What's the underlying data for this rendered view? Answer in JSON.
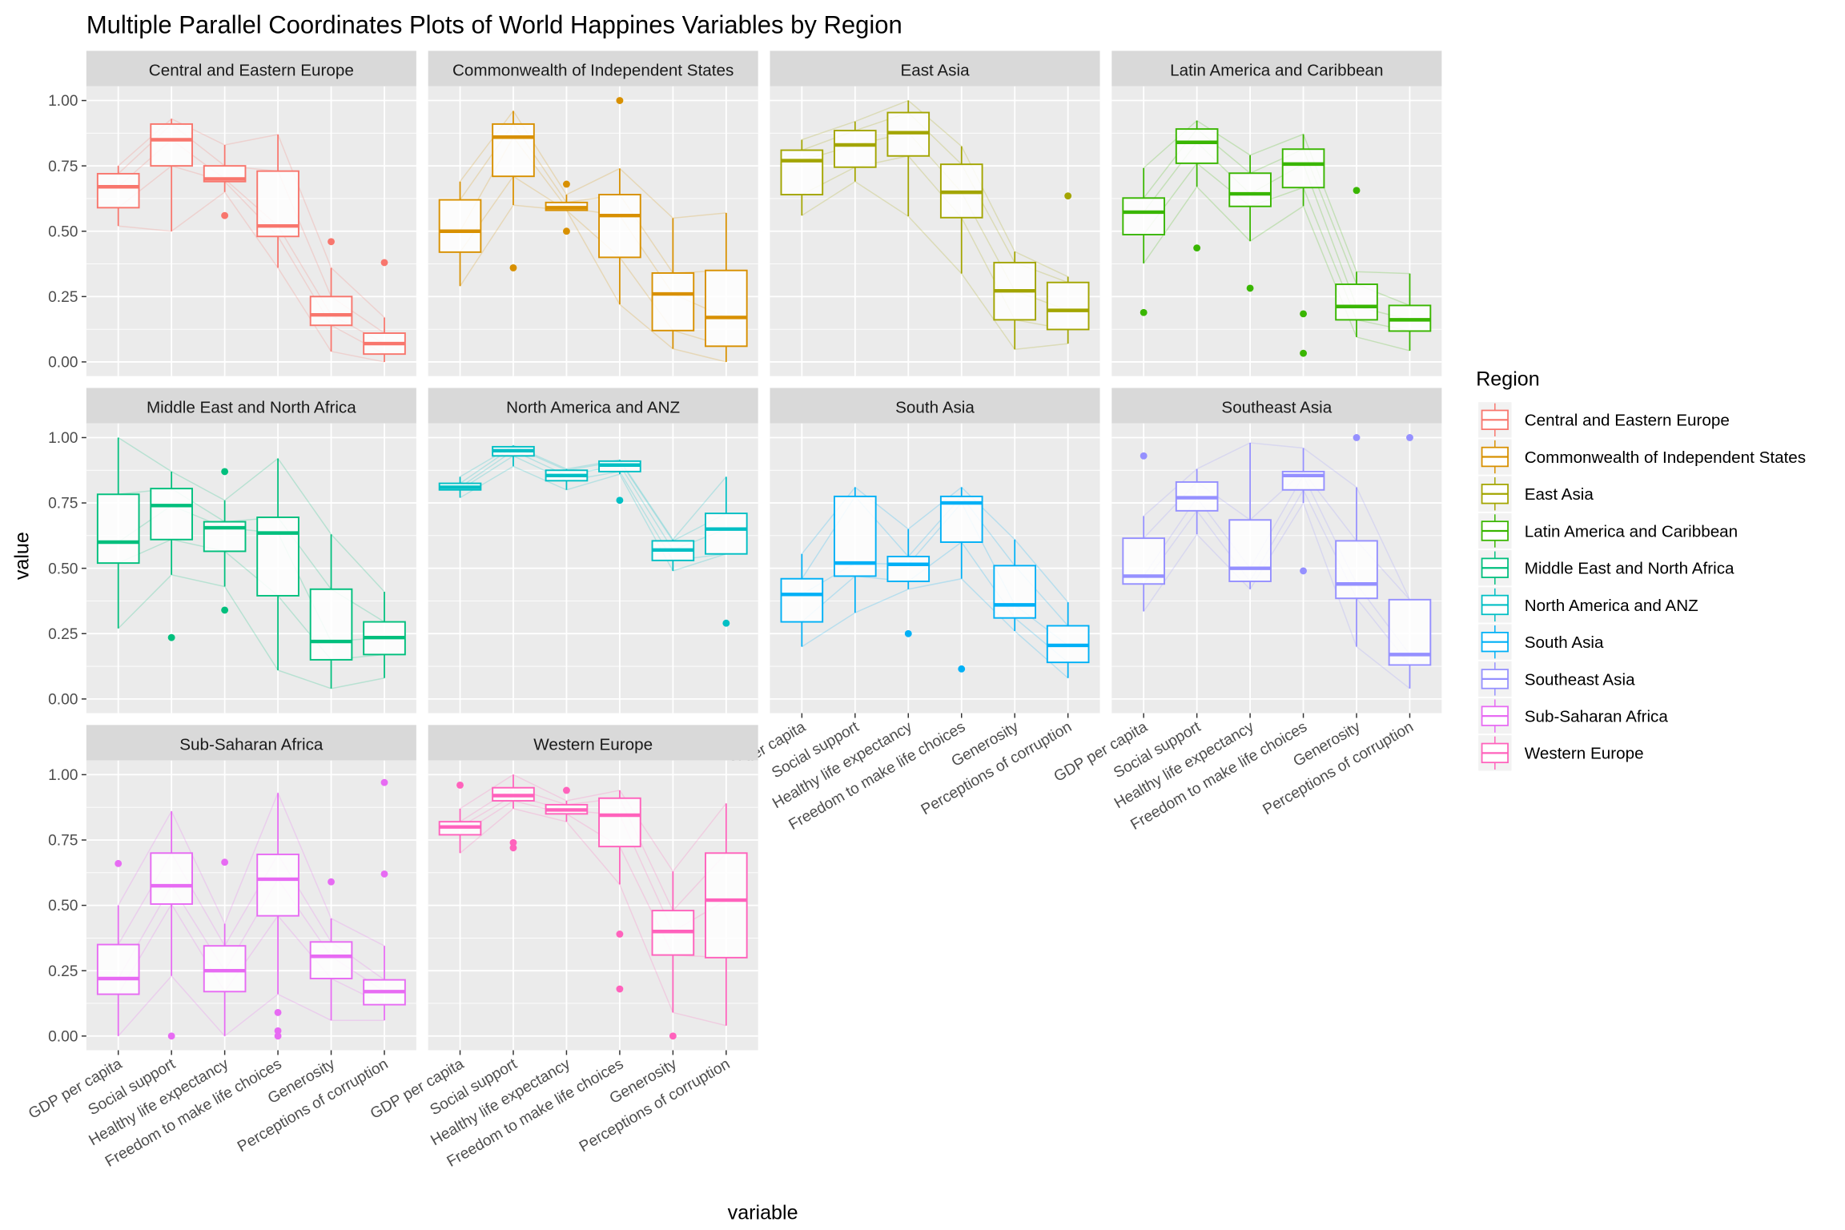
{
  "chart_data": {
    "type": "boxplot + parallel coordinates (faceted)",
    "title": "Multiple Parallel Coordinates Plots of World Happines Variables by Region",
    "xlabel": "variable",
    "ylabel": "value",
    "ylim": [
      0,
      1
    ],
    "yticks": [
      "0.00",
      "0.25",
      "0.50",
      "0.75",
      "1.00"
    ],
    "grid": true,
    "variables": [
      "GDP per capita",
      "Social support",
      "Healthy life expectancy",
      "Freedom to make life choices",
      "Generosity",
      "Perceptions of corruption"
    ],
    "legend": {
      "title": "Region",
      "position": "right"
    },
    "stat_order": [
      "lower_whisker",
      "q1",
      "median",
      "q3",
      "upper_whisker"
    ],
    "panels": [
      {
        "region": "Central and Eastern Europe",
        "color": "#F8766D",
        "stats": [
          [
            0.52,
            0.59,
            0.67,
            0.72,
            0.75
          ],
          [
            0.5,
            0.75,
            0.85,
            0.91,
            0.93
          ],
          [
            0.65,
            0.69,
            0.7,
            0.75,
            0.83
          ],
          [
            0.36,
            0.48,
            0.52,
            0.73,
            0.87
          ],
          [
            0.04,
            0.14,
            0.18,
            0.25,
            0.36
          ],
          [
            0.0,
            0.03,
            0.07,
            0.11,
            0.17
          ]
        ],
        "outliers": [
          [],
          [],
          [
            0.56
          ],
          [],
          [
            0.46
          ],
          [
            0.38
          ]
        ]
      },
      {
        "region": "Commonwealth of Independent States",
        "color": "#D89000",
        "stats": [
          [
            0.29,
            0.42,
            0.5,
            0.62,
            0.69
          ],
          [
            0.6,
            0.71,
            0.86,
            0.91,
            0.96
          ],
          [
            0.58,
            0.58,
            0.59,
            0.61,
            0.64
          ],
          [
            0.22,
            0.4,
            0.56,
            0.64,
            0.74
          ],
          [
            0.05,
            0.12,
            0.26,
            0.34,
            0.55
          ],
          [
            0.0,
            0.06,
            0.17,
            0.35,
            0.57
          ]
        ],
        "outliers": [
          [],
          [
            0.36
          ],
          [
            0.68,
            0.5
          ],
          [
            1.0
          ],
          [],
          []
        ]
      },
      {
        "region": "East Asia",
        "color": "#A3A500",
        "stats": [
          [
            0.56,
            0.64,
            0.77,
            0.81,
            0.85
          ],
          [
            0.69,
            0.745,
            0.83,
            0.885,
            0.92
          ],
          [
            0.557,
            0.788,
            0.877,
            0.954,
            1.0
          ],
          [
            0.338,
            0.552,
            0.649,
            0.756,
            0.825
          ],
          [
            0.048,
            0.161,
            0.272,
            0.38,
            0.422
          ],
          [
            0.07,
            0.124,
            0.197,
            0.304,
            0.326
          ]
        ],
        "outliers": [
          [],
          [],
          [],
          [],
          [],
          [
            0.635
          ]
        ]
      },
      {
        "region": "Latin America and Caribbean",
        "color": "#39B600",
        "stats": [
          [
            0.377,
            0.487,
            0.573,
            0.627,
            0.742
          ],
          [
            0.67,
            0.76,
            0.84,
            0.891,
            0.923
          ],
          [
            0.462,
            0.595,
            0.643,
            0.722,
            0.791
          ],
          [
            0.596,
            0.667,
            0.757,
            0.814,
            0.871
          ],
          [
            0.095,
            0.161,
            0.212,
            0.297,
            0.345
          ],
          [
            0.043,
            0.118,
            0.161,
            0.216,
            0.338
          ]
        ],
        "outliers": [
          [
            0.189
          ],
          [
            0.436
          ],
          [
            0.282
          ],
          [
            0.184,
            0.033
          ],
          [
            0.656
          ],
          []
        ]
      },
      {
        "region": "Middle East and North Africa",
        "color": "#00BF7D",
        "stats": [
          [
            0.27,
            0.52,
            0.6,
            0.783,
            1.0
          ],
          [
            0.475,
            0.61,
            0.74,
            0.805,
            0.87
          ],
          [
            0.43,
            0.565,
            0.655,
            0.678,
            0.76
          ],
          [
            0.11,
            0.395,
            0.635,
            0.695,
            0.92
          ],
          [
            0.04,
            0.15,
            0.22,
            0.42,
            0.63
          ],
          [
            0.08,
            0.17,
            0.235,
            0.295,
            0.41
          ]
        ],
        "outliers": [
          [],
          [
            0.235
          ],
          [
            0.87,
            0.34
          ],
          [],
          [],
          []
        ]
      },
      {
        "region": "North America and ANZ",
        "color": "#00BFC4",
        "stats": [
          [
            0.77,
            0.8,
            0.81,
            0.825,
            0.85
          ],
          [
            0.89,
            0.93,
            0.95,
            0.965,
            0.97
          ],
          [
            0.8,
            0.835,
            0.855,
            0.875,
            0.88
          ],
          [
            0.86,
            0.87,
            0.895,
            0.91,
            0.915
          ],
          [
            0.49,
            0.53,
            0.57,
            0.605,
            0.61
          ],
          [
            0.555,
            0.555,
            0.65,
            0.71,
            0.85
          ]
        ],
        "outliers": [
          [],
          [],
          [],
          [
            0.76
          ],
          [],
          [
            0.29
          ]
        ]
      },
      {
        "region": "South Asia",
        "color": "#00B0F6",
        "stats": [
          [
            0.2,
            0.295,
            0.4,
            0.46,
            0.555
          ],
          [
            0.33,
            0.47,
            0.52,
            0.775,
            0.81
          ],
          [
            0.42,
            0.45,
            0.515,
            0.545,
            0.65
          ],
          [
            0.46,
            0.6,
            0.75,
            0.775,
            0.81
          ],
          [
            0.26,
            0.31,
            0.36,
            0.51,
            0.61
          ],
          [
            0.08,
            0.14,
            0.205,
            0.28,
            0.37
          ]
        ],
        "outliers": [
          [],
          [],
          [
            0.25
          ],
          [
            0.115
          ],
          [],
          []
        ]
      },
      {
        "region": "Southeast Asia",
        "color": "#9590FF",
        "stats": [
          [
            0.335,
            0.44,
            0.47,
            0.615,
            0.7
          ],
          [
            0.63,
            0.72,
            0.77,
            0.83,
            0.88
          ],
          [
            0.42,
            0.45,
            0.5,
            0.685,
            0.98
          ],
          [
            0.75,
            0.8,
            0.855,
            0.87,
            0.96
          ],
          [
            0.2,
            0.385,
            0.44,
            0.605,
            0.81
          ],
          [
            0.04,
            0.13,
            0.17,
            0.38,
            0.38
          ]
        ],
        "outliers": [
          [
            0.93
          ],
          [],
          [],
          [
            0.49
          ],
          [
            1.0
          ],
          [
            1.0
          ]
        ]
      },
      {
        "region": "Sub-Saharan Africa",
        "color": "#E76BF3",
        "stats": [
          [
            0.0,
            0.16,
            0.22,
            0.35,
            0.5
          ],
          [
            0.23,
            0.505,
            0.575,
            0.7,
            0.86
          ],
          [
            0.0,
            0.17,
            0.25,
            0.345,
            0.43
          ],
          [
            0.16,
            0.46,
            0.6,
            0.695,
            0.93
          ],
          [
            0.06,
            0.22,
            0.305,
            0.36,
            0.45
          ],
          [
            0.06,
            0.12,
            0.17,
            0.215,
            0.345
          ]
        ],
        "outliers": [
          [
            0.66
          ],
          [
            0.0
          ],
          [
            0.665
          ],
          [
            0.09,
            0.02,
            0.0
          ],
          [
            0.59
          ],
          [
            0.97,
            0.62
          ]
        ]
      },
      {
        "region": "Western Europe",
        "color": "#FF62BC",
        "stats": [
          [
            0.7,
            0.77,
            0.8,
            0.82,
            0.87
          ],
          [
            0.87,
            0.9,
            0.92,
            0.95,
            1.0
          ],
          [
            0.82,
            0.85,
            0.865,
            0.885,
            0.9
          ],
          [
            0.58,
            0.725,
            0.845,
            0.91,
            0.94
          ],
          [
            0.09,
            0.31,
            0.4,
            0.48,
            0.63
          ],
          [
            0.04,
            0.3,
            0.52,
            0.7,
            0.89
          ]
        ],
        "outliers": [
          [
            0.96
          ],
          [
            0.74,
            0.72
          ],
          [
            0.94
          ],
          [
            0.39,
            0.18
          ],
          [
            0.0
          ],
          []
        ]
      }
    ]
  }
}
